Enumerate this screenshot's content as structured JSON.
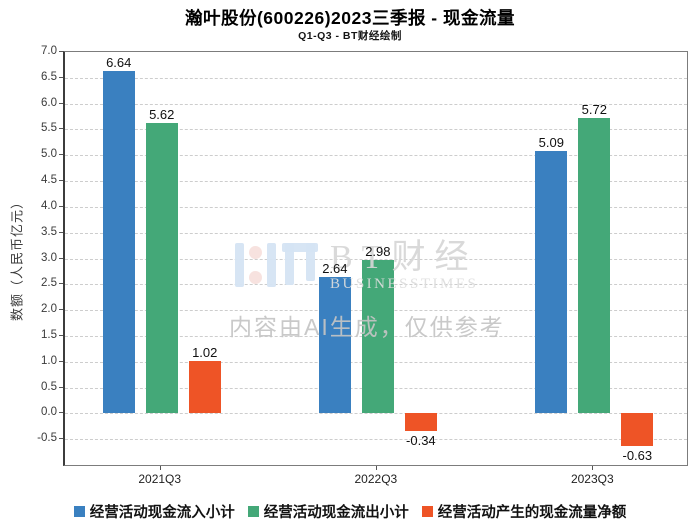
{
  "header": {
    "title": "瀚叶股份(600226)2023三季报 - 现金流量",
    "subtitle": "Q1-Q3 - BT财经绘制"
  },
  "chart_data": {
    "type": "bar",
    "title": "瀚叶股份(600226)2023三季报 - 现金流量",
    "subtitle": "Q1-Q3 - BT财经绘制",
    "categories": [
      "2021Q3",
      "2022Q3",
      "2023Q3"
    ],
    "series": [
      {
        "name": "经营活动现金流入小计",
        "color": "#3a80c0",
        "values": [
          6.64,
          2.64,
          5.09
        ]
      },
      {
        "name": "经营活动现金流出小计",
        "color": "#44a878",
        "values": [
          5.62,
          2.98,
          5.72
        ]
      },
      {
        "name": "经营活动产生的现金流量净额",
        "color": "#ee5426",
        "values": [
          1.02,
          -0.34,
          -0.63
        ]
      }
    ],
    "xlabel": "",
    "ylabel": "数额（人民币亿元）",
    "ylim": [
      -0.98,
      7.0
    ],
    "y_ticks": [
      "7.0",
      "6.5",
      "6.0",
      "5.5",
      "5.0",
      "4.5",
      "4.0",
      "3.5",
      "3.0",
      "2.5",
      "2.0",
      "1.5",
      "1.0",
      "0.5",
      "0.0",
      "-0.5"
    ],
    "grid": "horizontal-dashed",
    "legend_position": "bottom",
    "bar_value_labels": true
  },
  "watermark": {
    "brand": "BT财经",
    "brand_sub": "BUSINESSTIMES",
    "disclaimer": "内容由AI生成，仅供参考"
  }
}
